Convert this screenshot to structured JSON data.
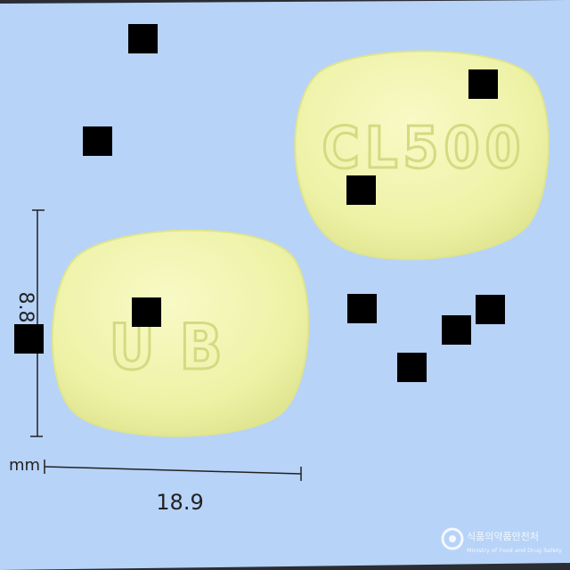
{
  "pill_front": {
    "imprint": "CL500",
    "imprint_letters": [
      "C",
      "L",
      "5",
      "0",
      "0"
    ]
  },
  "pill_back": {
    "imprint": "UB",
    "imprint_letters": [
      "U",
      "B"
    ]
  },
  "dimensions": {
    "height_value": "8.8",
    "width_value": "18.9",
    "unit": "mm"
  },
  "watermark": {
    "korean": "식품의약품안전처",
    "english": "Ministry of Food and Drug Safety"
  },
  "colors": {
    "background": "#b7d3f8",
    "pill_fill": "#f1f4ad",
    "pill_edge": "#d9e08a",
    "imprint": "#d6dc8c",
    "dim_line": "#222222",
    "frame": "#2a2d33"
  },
  "redaction_marks": 10
}
